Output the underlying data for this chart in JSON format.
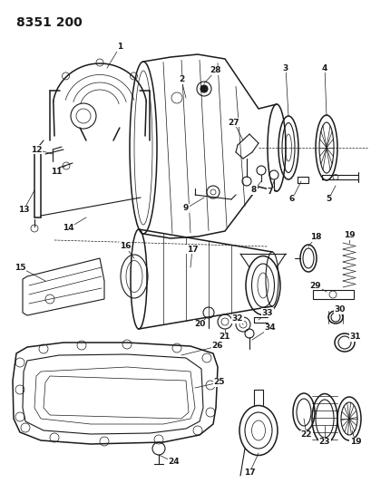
{
  "title": "8351 200",
  "bg_color": "#ffffff",
  "line_color": "#1a1a1a",
  "fig_width": 4.1,
  "fig_height": 5.33,
  "dpi": 100,
  "label_fontsize": 6.5,
  "title_fontsize": 10
}
